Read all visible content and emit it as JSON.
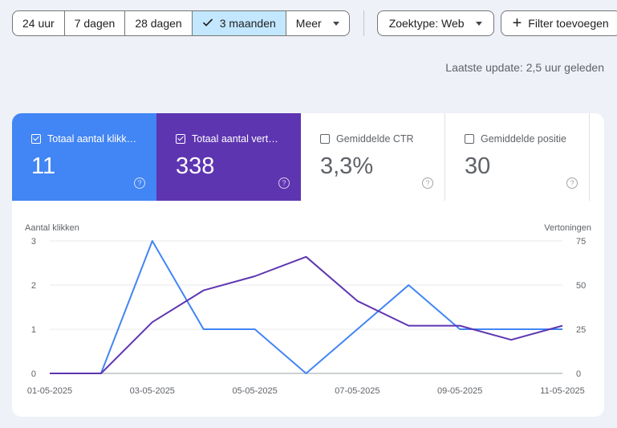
{
  "filters": {
    "date_ranges": [
      {
        "label": "24 uur",
        "selected": false
      },
      {
        "label": "7 dagen",
        "selected": false
      },
      {
        "label": "28 dagen",
        "selected": false
      },
      {
        "label": "3 maanden",
        "selected": true
      },
      {
        "label": "Meer",
        "selected": false,
        "has_dropdown": true
      }
    ],
    "search_type_label": "Zoektype: Web",
    "add_filter_label": "Filter toevoegen"
  },
  "last_update": "Laatste update: 2,5 uur geleden",
  "metrics": [
    {
      "label": "Totaal aantal klikk…",
      "value": "11",
      "checked": true,
      "color": "#4285f4"
    },
    {
      "label": "Totaal aantal vert…",
      "value": "338",
      "checked": true,
      "color": "#5e35b1"
    },
    {
      "label": "Gemiddelde CTR",
      "value": "3,3%",
      "checked": false
    },
    {
      "label": "Gemiddelde positie",
      "value": "30",
      "checked": false
    }
  ],
  "chart_data": {
    "type": "line",
    "ylabel_left": "Aantal klikken",
    "ylabel_right": "Vertoningen",
    "y_left_ticks": [
      0,
      1,
      2,
      3
    ],
    "y_right_ticks": [
      0,
      25,
      50,
      75
    ],
    "ylim_left": [
      0,
      3
    ],
    "ylim_right": [
      0,
      75
    ],
    "x_tick_labels": [
      "01-05-2025",
      "03-05-2025",
      "05-05-2025",
      "07-05-2025",
      "09-05-2025",
      "11-05-2025"
    ],
    "x": [
      "01-05-2025",
      "02-05-2025",
      "03-05-2025",
      "04-05-2025",
      "05-05-2025",
      "06-05-2025",
      "07-05-2025",
      "08-05-2025",
      "09-05-2025",
      "10-05-2025",
      "11-05-2025"
    ],
    "series": [
      {
        "name": "Totaal aantal klikken",
        "axis": "left",
        "color": "#4285f4",
        "values": [
          0,
          0,
          3,
          1,
          1,
          0,
          1,
          2,
          1,
          1,
          1
        ]
      },
      {
        "name": "Totaal aantal vertoningen",
        "axis": "right",
        "color": "#5e35b1",
        "values": [
          0,
          0,
          29,
          47,
          55,
          66,
          41,
          27,
          27,
          19,
          27
        ]
      }
    ],
    "grid": true
  }
}
